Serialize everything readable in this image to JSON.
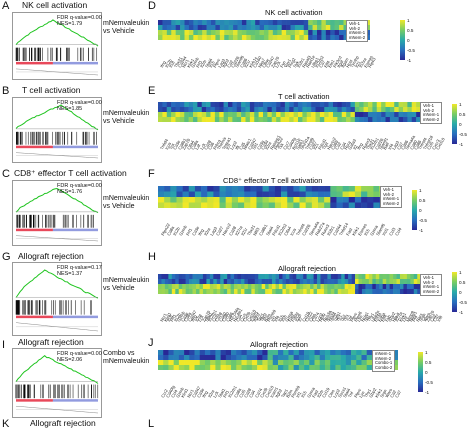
{
  "colors": {
    "gsea_line": "#1fc41f",
    "hit": "#000000",
    "rank_pos": "#e8485a",
    "rank_neg": "#4a58c9"
  },
  "left": [
    {
      "id": "A",
      "title": "NK cell activation",
      "fdr": "FDR q-value=0.00",
      "nes": "NES=1.79"
    },
    {
      "id": "B",
      "title": "T cell activation",
      "fdr": "FDR q-value=0.00",
      "nes": "NES=1.85"
    },
    {
      "id": "C",
      "title": "CD8⁺ effector T cell activation",
      "fdr": "FDR q-value=0.00",
      "nes": "NES=1.76"
    },
    {
      "id": "G",
      "title": "Allograft rejection",
      "fdr": "FDR q-value=0.17",
      "nes": "NES=1.37"
    },
    {
      "id": "I",
      "title": "Allograft rejection",
      "fdr": "FDR q-value=0.00",
      "nes": "NES=2.06"
    },
    {
      "id": "K",
      "title": "Allograft rejection"
    }
  ],
  "comparisons": {
    "c1": "mNemvaleukin vs Vehicle",
    "c2": "mNemvaleukin vs Vehicle",
    "c3": "mNemvaleukin vs Vehicle",
    "c4": "mNemvaleukin vs Vehicle",
    "c5": "Combo vs mNemvaleukin"
  },
  "right": [
    {
      "id": "D",
      "title": "NK cell activation",
      "legend": [
        "Veh-1",
        "Veh-2",
        "mNem-1",
        "mNem-2"
      ],
      "genes": [
        "Ifng",
        "Il12b",
        "Il18",
        "Tbx21",
        "Cd244",
        "Ncr1",
        "Klrk1",
        "Gzmb",
        "Prf1",
        "Il2rb",
        "Stat4",
        "Il15",
        "Ptprc",
        "Lag3",
        "Itgb2",
        "Cd2",
        "Cd226",
        "Slamf6",
        "Cd96",
        "Il21r",
        "Klrb1c",
        "Cd160",
        "Nkg7",
        "Ctsw",
        "Cd247",
        "Zap70",
        "Lck",
        "Fyn",
        "Vav1",
        "Plcg2",
        "Syk",
        "Il18r1",
        "Rasal3",
        "Raet1e",
        "Ulbp1",
        "Il12rb2",
        "Cd7",
        "Elf4",
        "Ets1",
        "Pik3cd",
        "Itgal",
        "Itgam",
        "Hcst",
        "Tyrobp",
        "Il21",
        "Il15ra",
        "Eomes",
        "Ripk3"
      ]
    },
    {
      "id": "E",
      "title": "T cell activation",
      "legend": [
        "Veh-1",
        "Veh-2",
        "mNem-1",
        "mNem-2"
      ],
      "genes": [
        "Tnfsf4",
        "Icos",
        "Tox",
        "Cd3e",
        "Cd8b1",
        "Zap70",
        "Ctla4",
        "Cd8a",
        "Lat",
        "Lck",
        "Cd28",
        "Cd6",
        "Prkcq",
        "Themis",
        "Tespa1",
        "Il7r",
        "Lcp2",
        "Itk",
        "Cd5",
        "Nfatc1",
        "Cd247",
        "Sit1",
        "Cd3g",
        "Cd3d",
        "Il2ra",
        "Rasgrp1",
        "Ptpn22",
        "Txk",
        "Ccr7",
        "Cd40lg",
        "Bcl11b",
        "Satb1",
        "Sh2d1a",
        "Tnfrsf9",
        "Cd27",
        "Il21",
        "Pdcd1",
        "Tigit",
        "Havcr2",
        "Cd69",
        "Cd2",
        "Cd4",
        "Rora",
        "Gata3",
        "Il2",
        "Ifng",
        "Runx3",
        "Tbx21",
        "Il12rb1",
        "Cd226",
        "Slamf1",
        "Batf",
        "Irf4",
        "Lag3",
        "Cd7",
        "Cd96",
        "Sema4a",
        "Cd80",
        "Cd86",
        "Tnfrsf4",
        "Tnfrsf18",
        "Ccl5",
        "Cxcr3",
        "Cxcl10"
      ]
    },
    {
      "id": "F",
      "title": "CD8⁺ effector T cell activation",
      "legend": [
        "Veh-1",
        "Veh-2",
        "mNem-1",
        "mNem-2"
      ],
      "genes": [
        "Ptpn22",
        "Cd8a",
        "Il12b",
        "Gzmb",
        "Prf1",
        "Cd3e",
        "Ifng",
        "Il2ra",
        "Lag3",
        "Cd27",
        "Havcr2",
        "Cd28",
        "Il27ra",
        "Il21r",
        "Tbx21",
        "Nfil3",
        "Cd8b1",
        "Stat4",
        "Pdcd1",
        "Il12rb2",
        "Ctla4",
        "Icos",
        "Tnfrsf4",
        "Cd226",
        "Sema4a",
        "Rab27a",
        "Runx3",
        "Il18r1",
        "Cd244",
        "Tnfsf14",
        "Fasl",
        "Klrk1",
        "Eomes",
        "Il15",
        "Gzma",
        "Slamf6",
        "Xcl1",
        "Ccl3",
        "Ccl4"
      ]
    },
    {
      "id": "H",
      "title": "Allograft rejection",
      "legend": [
        "Veh-1",
        "Veh-2",
        "mNem-1",
        "mNem-2"
      ],
      "genes": [
        "Ncr1",
        "Klrd1",
        "Il18",
        "Prf1",
        "Il12b",
        "Gzmb",
        "Cd3e",
        "Cd8a",
        "Cd247",
        "Ifng",
        "Il2ra",
        "Lck",
        "Zap70",
        "Stat1",
        "Il12rb1",
        "Ccl5",
        "Cd28",
        "Cd40",
        "Cd80",
        "Cd86",
        "H2-DMa",
        "H2-Ab1",
        "Cd4",
        "Ccr5",
        "Cxcl9",
        "Cxcl10",
        "Icam1",
        "Itgb2",
        "Tap1",
        "Tap2",
        "B2m",
        "Psmb9",
        "Irf1",
        "Irf4",
        "Il15",
        "Il16",
        "Gzma",
        "Fasl",
        "Faslg",
        "Il2rb",
        "Il7",
        "Ccl19",
        "Ccl22",
        "Ctss",
        "Cd74",
        "Lcp2",
        "Rpl9",
        "Rps3a",
        "Socs1",
        "Stat4",
        "Tgfb1",
        "Tlr1",
        "Tlr2",
        "Tlr3",
        "Tnf",
        "Ptprc",
        "Ptpn6",
        "Lyn",
        "Hcls1",
        "Sit1",
        "Thy1",
        "Ube2n",
        "Eif3a",
        "Eif5a",
        "Elf4",
        "Fyb",
        "Gbp2",
        "Hla-a",
        "Il27ra",
        "Klrk1",
        "Lta",
        "Mmp9",
        "Nme1",
        "Pf4",
        "Rars",
        "Srgn",
        "Wars",
        "Zap70",
        "Cd2",
        "Cd7",
        "Irf8"
      ]
    },
    {
      "id": "J",
      "title": "Allograft rejection",
      "legend": [
        "mNem-1",
        "mNem-2",
        "Combo-1",
        "Combo-2"
      ],
      "genes": [
        "Ccr2",
        "Cd40lg",
        "Ccl4",
        "Gzmb",
        "Klrd1",
        "Ncr1",
        "Cd247",
        "Cd3e",
        "Ifng",
        "Il2ra",
        "Lck",
        "Stat1",
        "Prf1",
        "Il12rb1",
        "Cd8a",
        "Ccl5",
        "Cd28",
        "Cd4",
        "Cd74",
        "Cxcl9",
        "Cxcl10",
        "Icam1",
        "Itgb2",
        "Tap1",
        "B2m",
        "Psmb9",
        "Irf1",
        "Il15",
        "Gzma",
        "Fasl",
        "Il2rb",
        "Ccl19",
        "Ctss",
        "Lcp2",
        "Socs1",
        "Stat4",
        "Tnf",
        "Ptprc",
        "Lyn",
        "Thy1",
        "Gbp2",
        "Klrk1",
        "Srgn",
        "Wars",
        "Cd2",
        "Cd7"
      ]
    },
    {
      "id": "L"
    }
  ],
  "colorbar": {
    "ticks": [
      "1",
      "0.5",
      "0",
      "-0.5",
      "-1"
    ]
  }
}
